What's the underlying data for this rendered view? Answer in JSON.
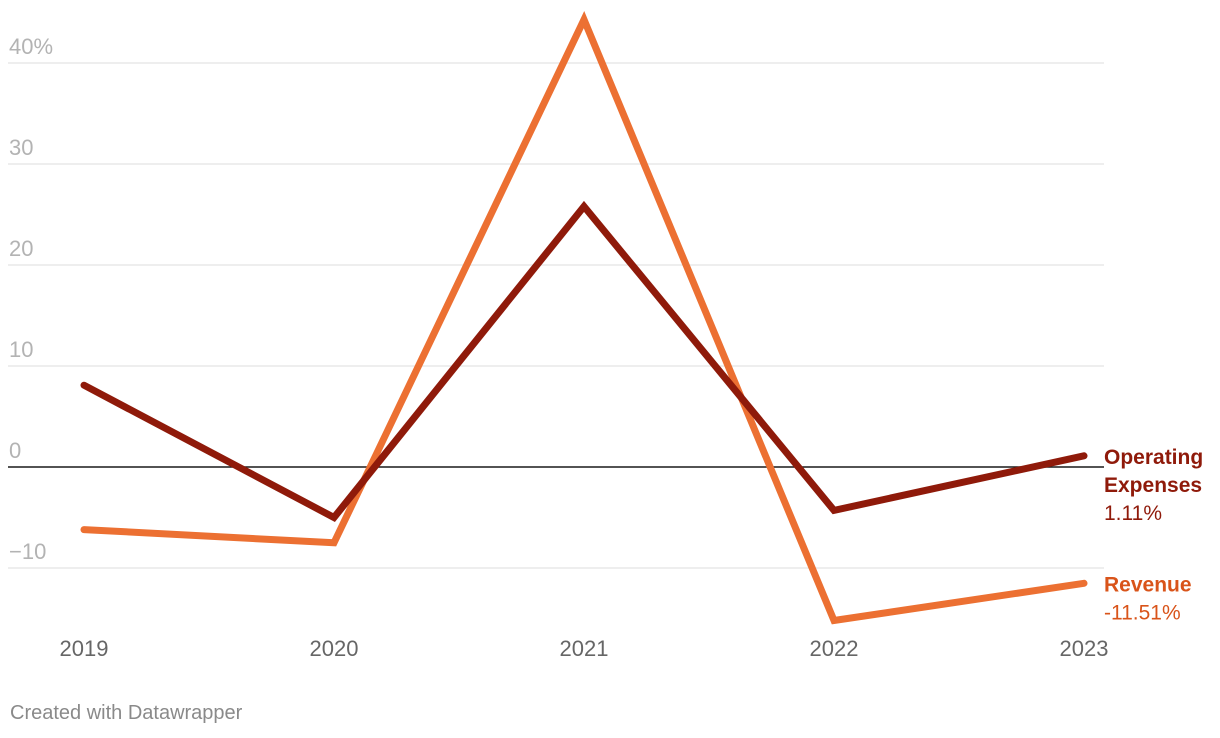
{
  "chart_data": {
    "type": "line",
    "x": [
      "2019",
      "2020",
      "2021",
      "2022",
      "2023"
    ],
    "y_ticks": [
      {
        "value": 40,
        "label": "40%"
      },
      {
        "value": 30,
        "label": "30"
      },
      {
        "value": 20,
        "label": "20"
      },
      {
        "value": 10,
        "label": "10"
      },
      {
        "value": 0,
        "label": "0"
      },
      {
        "value": -10,
        "label": "−10"
      }
    ],
    "ylim": [
      -15.5,
      44.5
    ],
    "grid": true,
    "series": [
      {
        "name": "Operating Expenses",
        "name_lines": [
          "Operating",
          "Expenses"
        ],
        "values": [
          8.1,
          -5.0,
          25.8,
          -4.3,
          1.11
        ],
        "end_label": "1.11%",
        "color": "#8f1a0a"
      },
      {
        "name": "Revenue",
        "name_lines": [
          "Revenue"
        ],
        "values": [
          -6.2,
          -7.5,
          44.3,
          -15.2,
          -11.51
        ],
        "end_label": "-11.51%",
        "color": "#ec7032",
        "label_color": "#d9541a"
      }
    ]
  },
  "footer": {
    "credit": "Created with Datawrapper"
  }
}
